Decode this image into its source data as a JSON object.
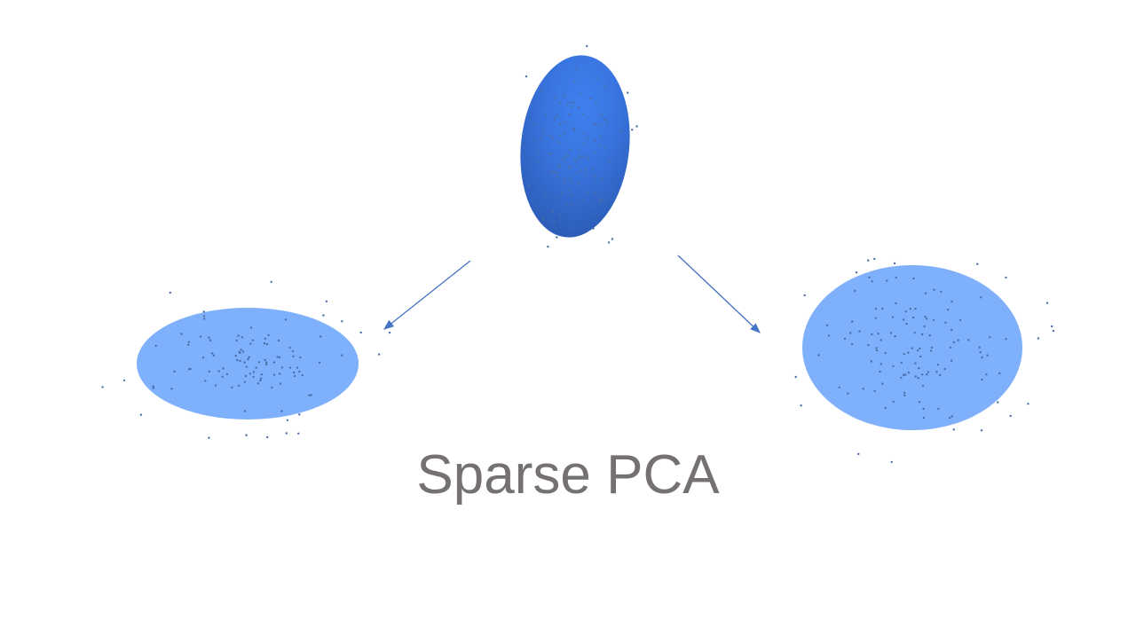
{
  "slide": {
    "title": "Sparse PCA"
  },
  "colors": {
    "ellipse_dark_center": "#3F80EF",
    "ellipse_dark_edge": "#2C5BB5",
    "ellipse_light": "#7FB0FB",
    "dots": "#4A6EA8",
    "arrows": "#4472C4",
    "title_text": "#767171"
  }
}
